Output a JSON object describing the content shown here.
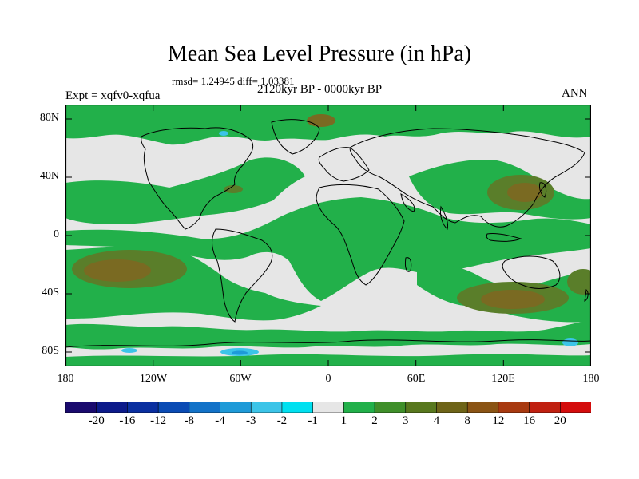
{
  "title": "Mean Sea Level Pressure (in hPa)",
  "stats": "rmsd= 1.24945 diff= 1.03381",
  "experiment": "Expt = xqfv0-xqfua",
  "period": "2120kyr BP - 0000kyr BP",
  "season": "ANN",
  "lat_ticks": [
    "80N",
    "40N",
    "0",
    "40S",
    "80S"
  ],
  "lon_ticks": [
    "180",
    "120W",
    "60W",
    "0",
    "60E",
    "120E",
    "180"
  ],
  "colorbar": {
    "labels": [
      "-20",
      "-16",
      "-12",
      "-8",
      "-4",
      "-3",
      "-2",
      "-1",
      "1",
      "2",
      "3",
      "4",
      "8",
      "12",
      "16",
      "20"
    ],
    "colors": [
      "#1a0a6e",
      "#0c1a8a",
      "#0a2fa0",
      "#0a4bb4",
      "#1272c8",
      "#1e9ad8",
      "#3cc4e8",
      "#00e0f0",
      "#e6e6e6",
      "#22b04a",
      "#3f8f2a",
      "#58781e",
      "#6e6418",
      "#8a5414",
      "#a83a10",
      "#c02010",
      "#d40c0c"
    ]
  },
  "fill_colors": {
    "ocean": "#e6e6e6",
    "green": "#22b04a",
    "olive": "#5a7e2a",
    "brown": "#7a6a22",
    "cyan": "#3cc4e8",
    "blue": "#1e9ad8"
  }
}
